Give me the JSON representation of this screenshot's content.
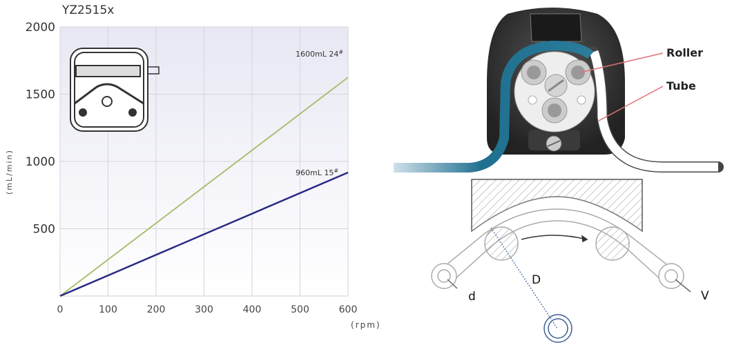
{
  "chart_data": {
    "type": "line",
    "title": "YZ2515x",
    "xlabel": "(rpm)",
    "ylabel": "(mL/min)",
    "xlim": [
      0,
      600
    ],
    "ylim": [
      0,
      2000
    ],
    "x_ticks": [
      "0",
      "100",
      "200",
      "300",
      "400",
      "500",
      "600"
    ],
    "y_ticks": [
      "500",
      "1000",
      "1500",
      "2000"
    ],
    "grid": true,
    "series": [
      {
        "name": "1600mL 24#",
        "label": "1600mL 24",
        "sup": "#",
        "color": "#a8c070",
        "x": [
          0,
          600
        ],
        "y": [
          0,
          1625
        ]
      },
      {
        "name": "960mL 15#",
        "label": "960mL 15",
        "sup": "#",
        "color": "#2a2a85",
        "x": [
          0,
          600
        ],
        "y": [
          0,
          918
        ]
      }
    ]
  },
  "illustration": {
    "roller_label": "Roller",
    "tube_label": "Tube",
    "d_label": "d",
    "D_label": "D",
    "V_label": "V",
    "tube_color": "#1f6f8f",
    "pointer_color": "#e0707a"
  }
}
